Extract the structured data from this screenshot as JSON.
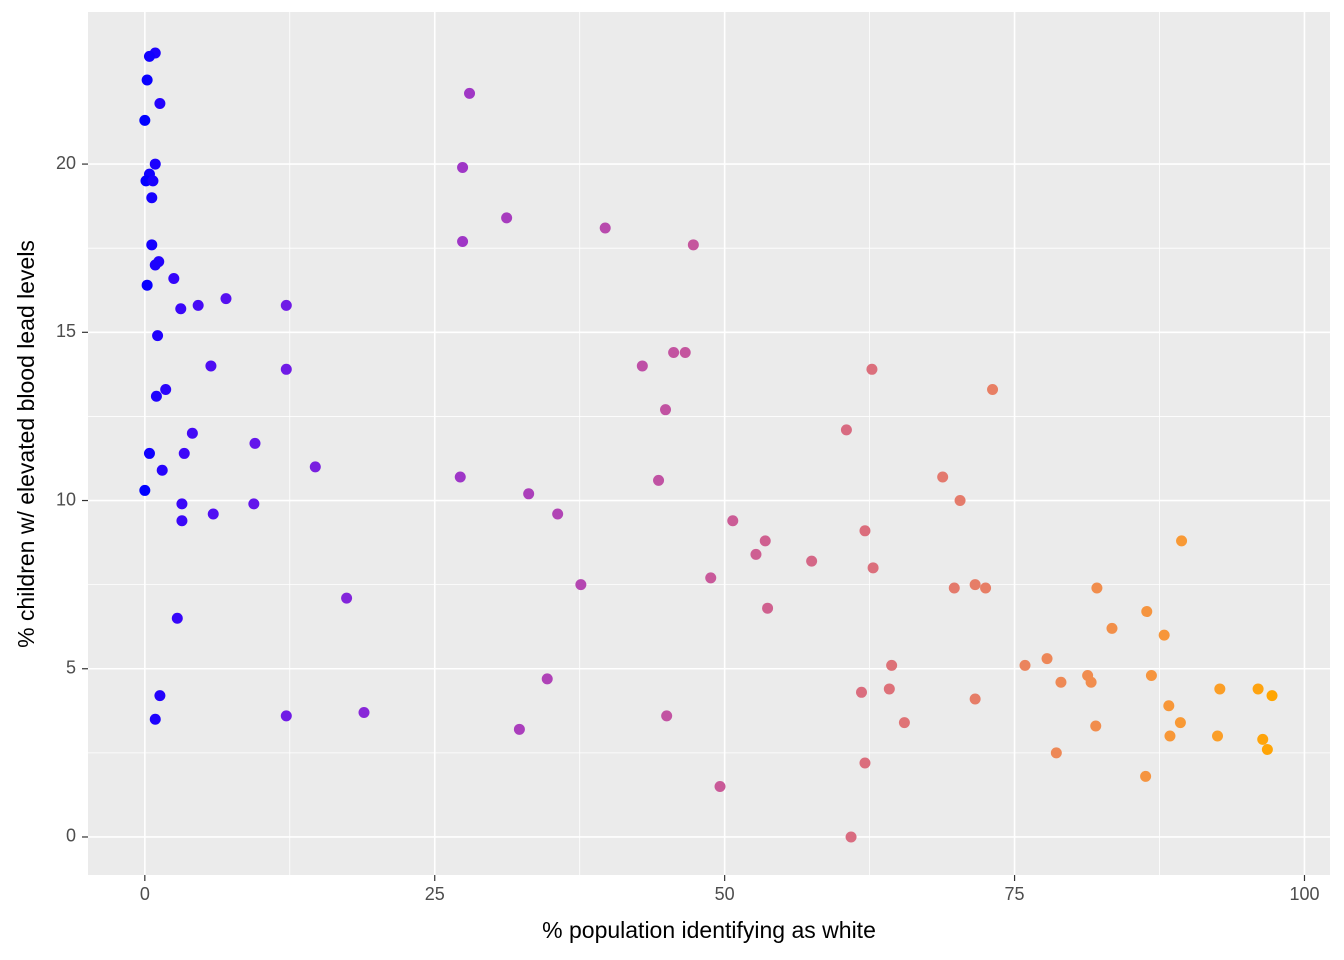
{
  "chart_data": {
    "type": "scatter",
    "x_label": "% population identifying as white",
    "y_label": "% children w/ elevated blood lead levels",
    "x": [
      0.9,
      0.4,
      0.2,
      1.3,
      0.0,
      0.9,
      0.4,
      0.1,
      0.7,
      0.6,
      0.6,
      1.2,
      0.9,
      2.5,
      0.2,
      7.0,
      4.6,
      3.1,
      12.2,
      1.1,
      5.7,
      12.2,
      1.8,
      1.0,
      4.1,
      9.5,
      3.4,
      0.4,
      14.7,
      1.5,
      0.0,
      3.2,
      9.4,
      5.9,
      3.2,
      17.4,
      2.8,
      1.3,
      18.9,
      12.2,
      0.9,
      28.0,
      27.4,
      31.2,
      27.4,
      39.7,
      47.3,
      46.6,
      45.6,
      42.9,
      44.9,
      27.2,
      44.3,
      33.1,
      35.6,
      37.6,
      34.7,
      32.3,
      45.0,
      49.6,
      50.7,
      53.5,
      52.7,
      48.8,
      53.7,
      57.5,
      60.5,
      62.7,
      62.1,
      62.8,
      64.4,
      61.8,
      64.2,
      65.5,
      62.1,
      60.9,
      73.1,
      68.8,
      70.3,
      69.8,
      71.6,
      72.5,
      71.6,
      75.9,
      77.8,
      79.0,
      81.3,
      81.6,
      78.6,
      82.0,
      82.1,
      83.4,
      86.4,
      87.9,
      86.8,
      89.4,
      88.3,
      88.4,
      89.3,
      86.3,
      92.7,
      92.5,
      96.0,
      97.2,
      96.4,
      96.8
    ],
    "values": [
      23.3,
      23.2,
      22.5,
      21.8,
      21.3,
      20.0,
      19.7,
      19.5,
      19.5,
      19.0,
      17.6,
      17.1,
      17.0,
      16.6,
      16.4,
      16.0,
      15.8,
      15.7,
      15.8,
      14.9,
      14.0,
      13.9,
      13.3,
      13.1,
      12.0,
      11.7,
      11.4,
      11.4,
      11.0,
      10.9,
      10.3,
      9.9,
      9.9,
      9.6,
      9.4,
      7.1,
      6.5,
      4.2,
      3.7,
      3.6,
      3.5,
      22.1,
      19.9,
      18.4,
      17.7,
      18.1,
      17.6,
      14.4,
      14.4,
      14.0,
      12.7,
      10.7,
      10.6,
      10.2,
      9.6,
      7.5,
      4.7,
      3.2,
      3.6,
      1.5,
      9.4,
      8.8,
      8.4,
      7.7,
      6.8,
      8.2,
      12.1,
      13.9,
      9.1,
      8.0,
      5.1,
      4.3,
      4.4,
      3.4,
      2.2,
      0.0,
      13.3,
      10.7,
      10.0,
      7.4,
      7.5,
      7.4,
      4.1,
      5.1,
      5.3,
      4.6,
      4.8,
      4.6,
      2.5,
      3.3,
      7.4,
      6.2,
      6.7,
      6.0,
      4.8,
      8.8,
      3.9,
      3.0,
      3.4,
      1.8,
      4.4,
      3.0,
      4.4,
      4.2,
      2.9,
      2.6
    ],
    "color_low": "#0000FF",
    "color_high": "#FFA500",
    "xlim": [
      -4.9,
      102.2
    ],
    "ylim": [
      -1.13,
      24.52
    ],
    "xticks": [
      0,
      25,
      50,
      75,
      100
    ],
    "yticks": [
      0,
      5,
      10,
      15,
      20
    ],
    "grid": true,
    "minor_grid": true,
    "panel_color": "#EBEBEB"
  }
}
